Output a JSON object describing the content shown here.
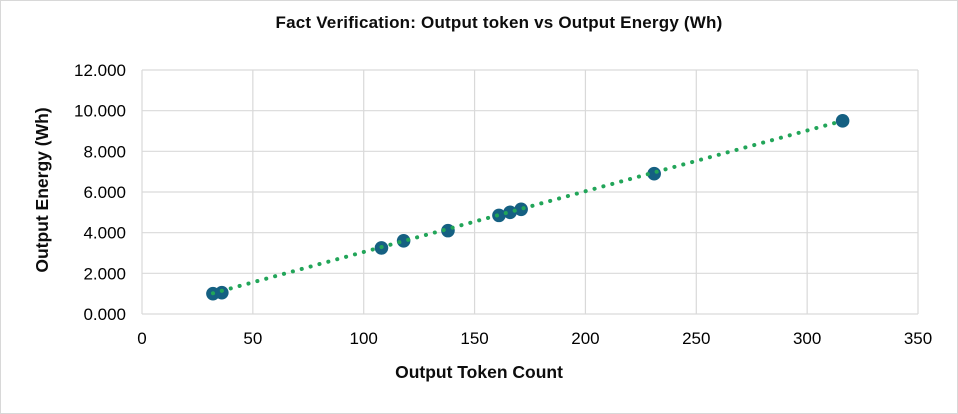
{
  "chart_data": {
    "type": "scatter",
    "title": "Fact Verification: Output token vs Output Energy (Wh)",
    "xlabel": "Output Token Count",
    "ylabel": "Output Energy (Wh)",
    "xlim": [
      0,
      350
    ],
    "ylim": [
      0,
      12
    ],
    "xticks": [
      0,
      50,
      100,
      150,
      200,
      250,
      300,
      350
    ],
    "xtick_labels": [
      "0",
      "50",
      "100",
      "150",
      "200",
      "250",
      "300",
      "350"
    ],
    "yticks": [
      0,
      2,
      4,
      6,
      8,
      10,
      12
    ],
    "ytick_labels": [
      "0.000",
      "2.000",
      "4.000",
      "6.000",
      "8.000",
      "10.000",
      "12.000"
    ],
    "grid": true,
    "legend": "none",
    "series": [
      {
        "name": "Output Energy (Wh)",
        "points": [
          [
            32,
            1.0
          ],
          [
            36,
            1.05
          ],
          [
            108,
            3.25
          ],
          [
            118,
            3.6
          ],
          [
            138,
            4.1
          ],
          [
            161,
            4.85
          ],
          [
            166,
            5.0
          ],
          [
            171,
            5.15
          ],
          [
            231,
            6.9
          ],
          [
            316,
            9.5
          ]
        ]
      }
    ],
    "trendline": {
      "type": "linear",
      "style": "dotted",
      "start": [
        32,
        1.02
      ],
      "end": [
        316,
        9.5
      ]
    },
    "colors": {
      "marker": "#156082",
      "trendline": "#22A559",
      "gridline": "#D9D9D9",
      "text": "#000000",
      "background": "#FFFFFF",
      "border": "#D8D8D8"
    }
  }
}
